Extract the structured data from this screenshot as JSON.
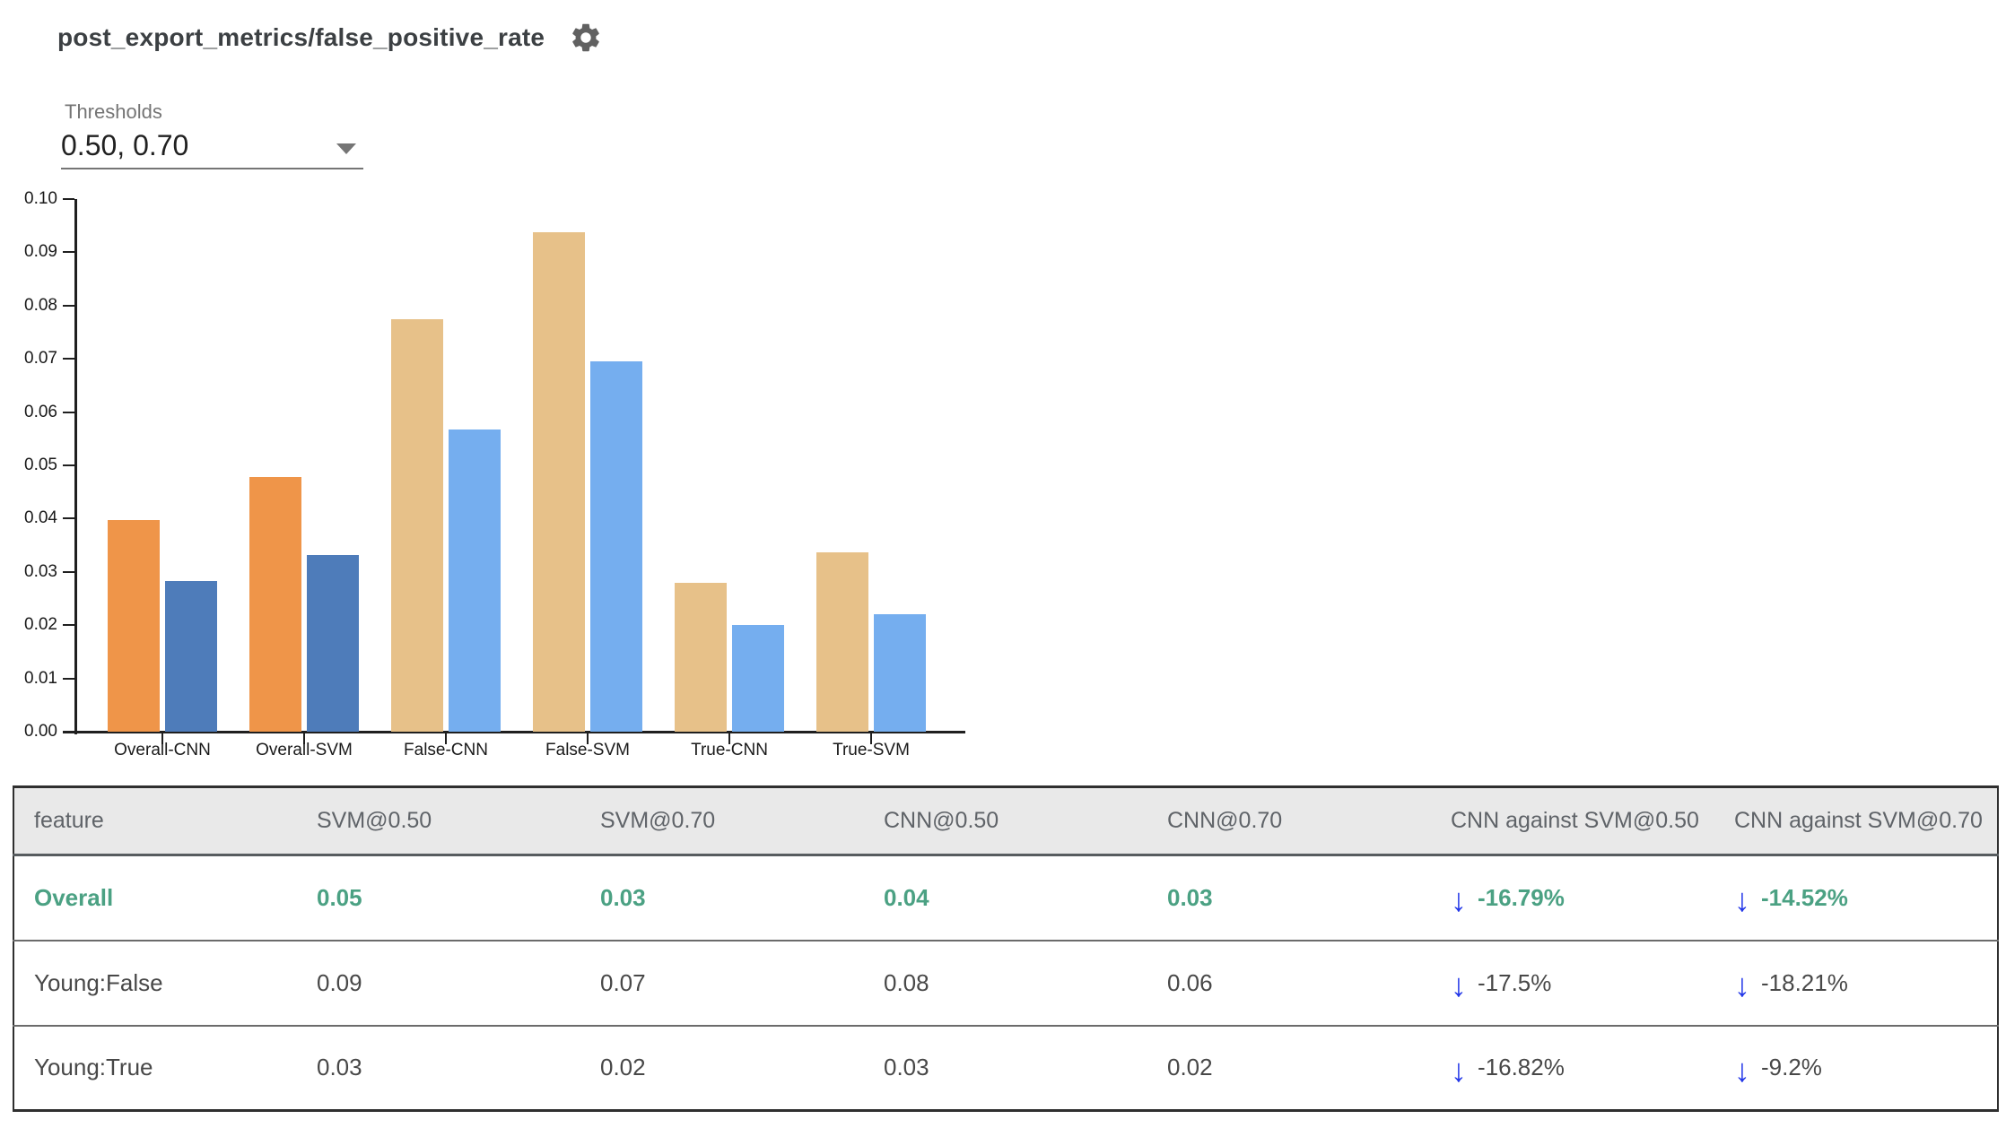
{
  "header": {
    "title": "post_export_metrics/false_positive_rate"
  },
  "thresholds": {
    "label": "Thresholds",
    "value": "0.50, 0.70"
  },
  "icons": {
    "down_arrow": "↓"
  },
  "chart_data": {
    "type": "bar",
    "title": "post_export_metrics/false_positive_rate",
    "categories": [
      "Overall-CNN",
      "Overall-SVM",
      "False-CNN",
      "False-SVM",
      "True-CNN",
      "True-SVM"
    ],
    "series": [
      {
        "name": "0.50",
        "values": [
          0.0398,
          0.0478,
          0.0774,
          0.0938,
          0.028,
          0.0336
        ]
      },
      {
        "name": "0.70",
        "values": [
          0.0283,
          0.0332,
          0.0568,
          0.0695,
          0.02,
          0.022
        ]
      }
    ],
    "ylim": [
      0,
      0.1
    ],
    "yticks": [
      "0.00",
      "0.01",
      "0.02",
      "0.03",
      "0.04",
      "0.05",
      "0.06",
      "0.07",
      "0.08",
      "0.09",
      "0.10"
    ],
    "grid": false,
    "legend": "none",
    "colors": {
      "overall": [
        "#ef9549",
        "#4e7cba"
      ],
      "slices": [
        "#e7c189",
        "#75aeef"
      ]
    }
  },
  "table": {
    "columns": [
      "feature",
      "SVM@0.50",
      "SVM@0.70",
      "CNN@0.50",
      "CNN@0.70",
      "CNN against SVM@0.50",
      "CNN against SVM@0.70"
    ],
    "rows": [
      {
        "feature": "Overall",
        "values": [
          "0.05",
          "0.03",
          "0.04",
          "0.03"
        ],
        "deltas": [
          "-16.79%",
          "-14.52%"
        ],
        "highlight": true
      },
      {
        "feature": "Young:False",
        "values": [
          "0.09",
          "0.07",
          "0.08",
          "0.06"
        ],
        "deltas": [
          "-17.5%",
          "-18.21%"
        ],
        "highlight": false
      },
      {
        "feature": "Young:True",
        "values": [
          "0.03",
          "0.02",
          "0.03",
          "0.02"
        ],
        "deltas": [
          "-16.82%",
          "-9.2%"
        ],
        "highlight": false
      }
    ]
  }
}
